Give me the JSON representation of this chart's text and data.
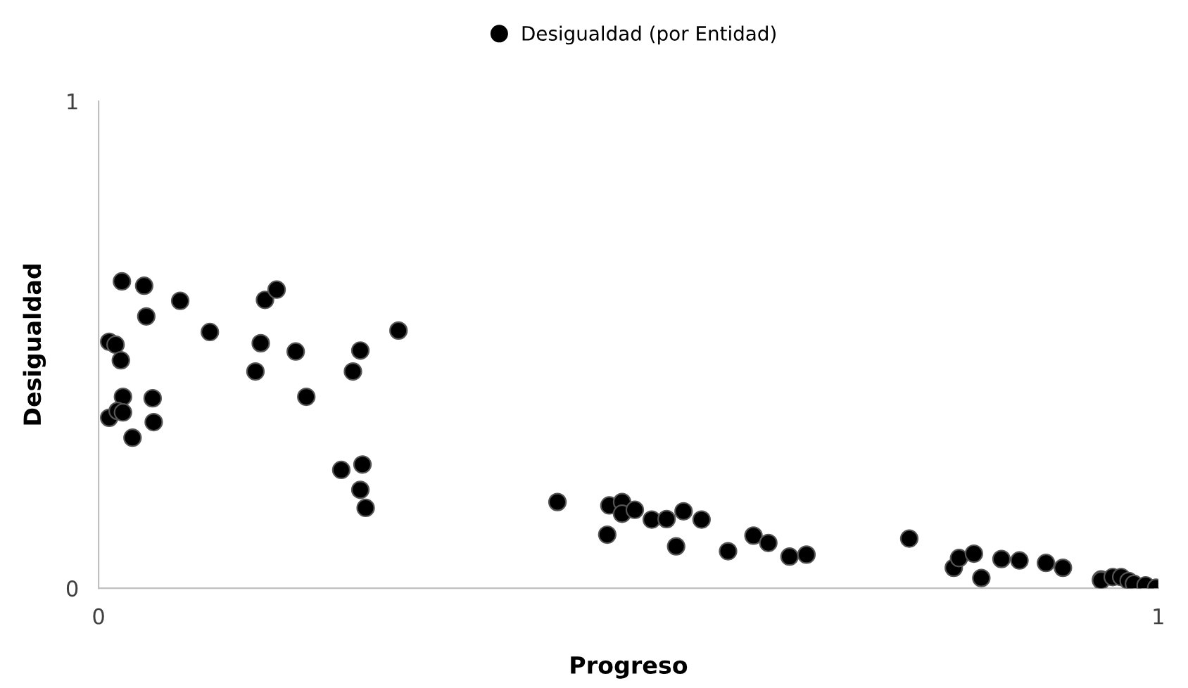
{
  "chart_data": {
    "type": "scatter",
    "xlabel": "Progreso",
    "ylabel": "Desigualdad",
    "xlim": [
      0,
      1
    ],
    "ylim": [
      0,
      1
    ],
    "xticks": [
      0,
      1
    ],
    "yticks": [
      0,
      1
    ],
    "grid": false,
    "legend": "top",
    "marker": "circle",
    "series": [
      {
        "name": "Desigualdad (por Entidad)",
        "color": "#000000",
        "x": [
          0.01,
          0.016,
          0.021,
          0.022,
          0.043,
          0.045,
          0.077,
          0.023,
          0.01,
          0.018,
          0.023,
          0.032,
          0.051,
          0.052,
          0.105,
          0.148,
          0.153,
          0.157,
          0.168,
          0.186,
          0.196,
          0.229,
          0.24,
          0.247,
          0.249,
          0.247,
          0.252,
          0.283,
          0.433,
          0.482,
          0.494,
          0.494,
          0.506,
          0.522,
          0.536,
          0.552,
          0.569,
          0.48,
          0.545,
          0.594,
          0.618,
          0.632,
          0.652,
          0.668,
          0.765,
          0.807,
          0.812,
          0.826,
          0.833,
          0.852,
          0.869,
          0.894,
          0.91,
          0.946,
          0.946,
          0.957,
          0.965,
          0.972,
          0.977,
          0.988,
          0.998
        ],
        "values": [
          0.506,
          0.5,
          0.468,
          0.63,
          0.621,
          0.558,
          0.59,
          0.393,
          0.35,
          0.364,
          0.361,
          0.309,
          0.39,
          0.341,
          0.526,
          0.445,
          0.503,
          0.592,
          0.613,
          0.486,
          0.393,
          0.243,
          0.445,
          0.488,
          0.254,
          0.202,
          0.165,
          0.529,
          0.177,
          0.17,
          0.177,
          0.153,
          0.161,
          0.141,
          0.142,
          0.158,
          0.141,
          0.11,
          0.086,
          0.076,
          0.108,
          0.093,
          0.065,
          0.069,
          0.102,
          0.042,
          0.062,
          0.071,
          0.021,
          0.06,
          0.057,
          0.052,
          0.042,
          0.018,
          0.016,
          0.023,
          0.023,
          0.015,
          0.009,
          0.006,
          0.001
        ]
      }
    ]
  }
}
